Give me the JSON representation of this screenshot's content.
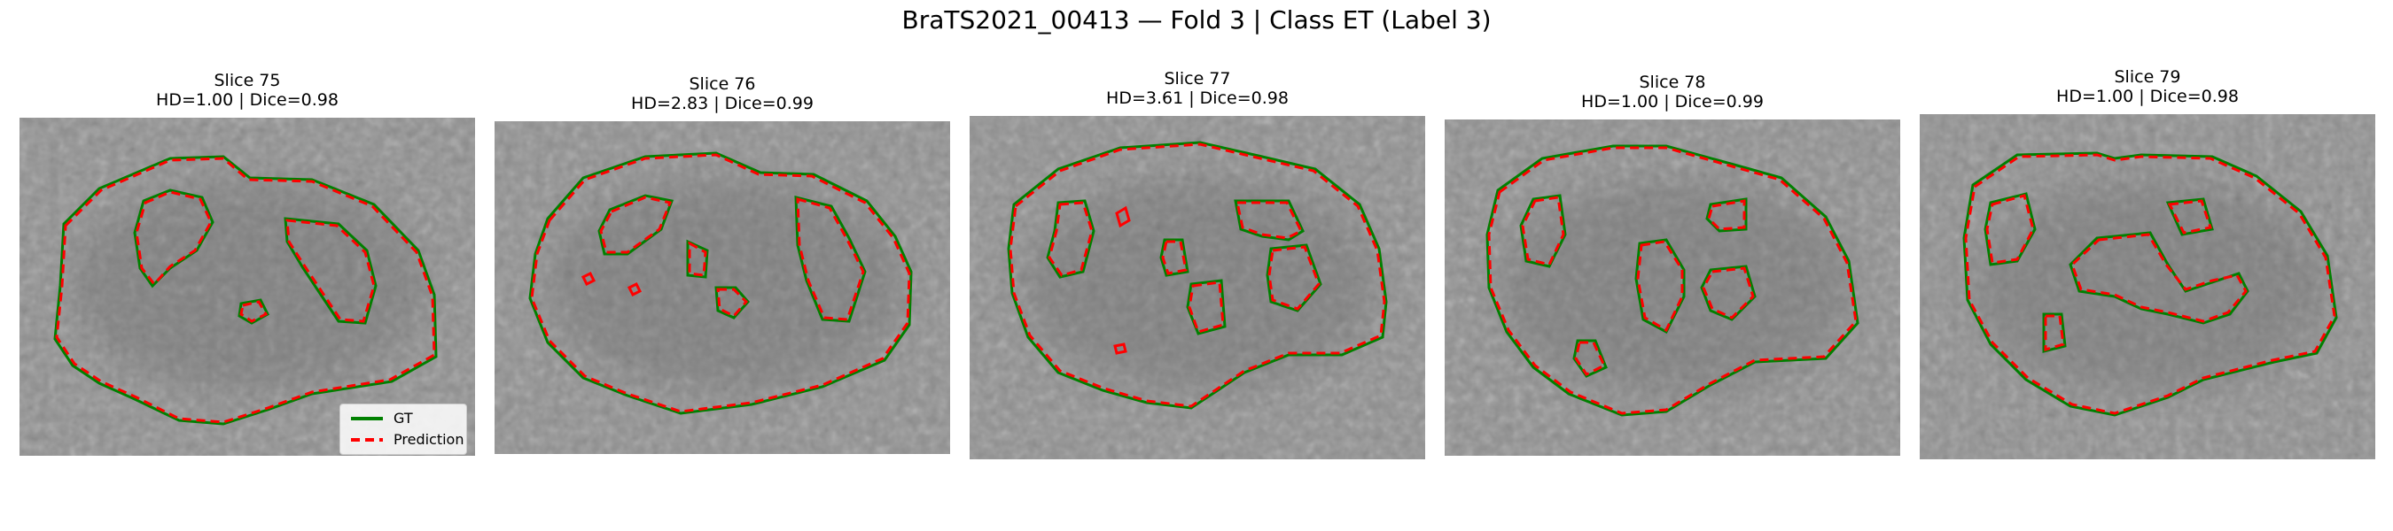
{
  "figure": {
    "title": "BraTS2021_00413 — Fold 3 | Class ET (Label 3)"
  },
  "panels": [
    {
      "slice": "Slice 75",
      "metrics": "HD=1.00 | Dice=0.98"
    },
    {
      "slice": "Slice 76",
      "metrics": "HD=2.83 | Dice=0.99"
    },
    {
      "slice": "Slice 77",
      "metrics": "HD=3.61 | Dice=0.98"
    },
    {
      "slice": "Slice 78",
      "metrics": "HD=1.00 | Dice=0.99"
    },
    {
      "slice": "Slice 79",
      "metrics": "HD=1.00 | Dice=0.98"
    }
  ],
  "legend": {
    "gt_label": "GT",
    "prediction_label": "Prediction"
  },
  "colors": {
    "gt": "#008000",
    "prediction": "#ff0000"
  }
}
